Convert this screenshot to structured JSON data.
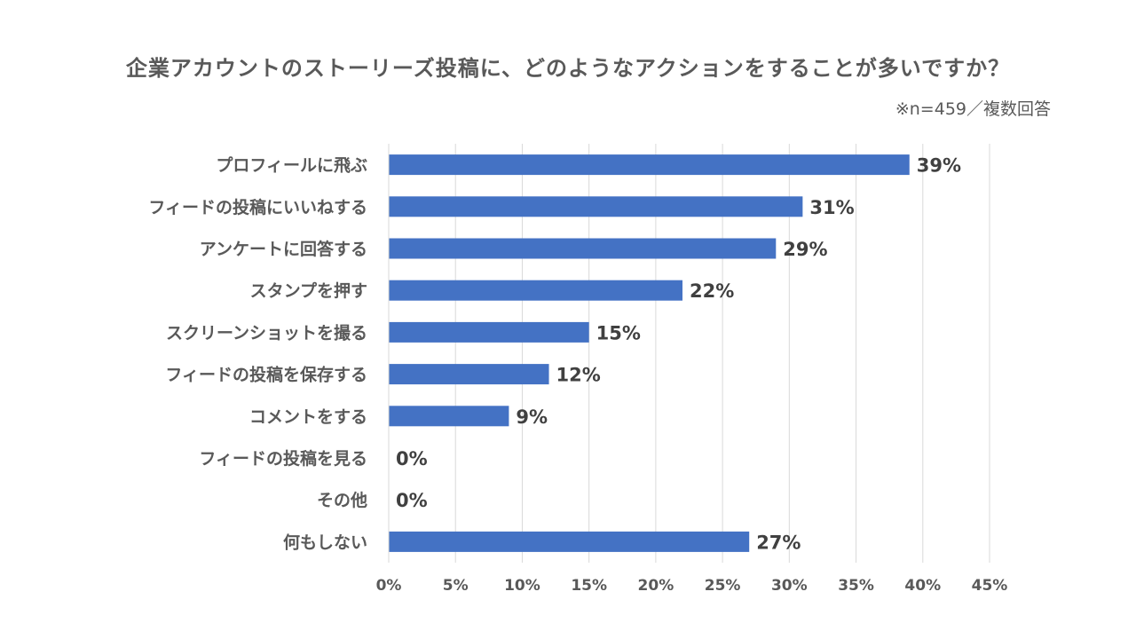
{
  "chart_data": {
    "type": "bar",
    "orientation": "horizontal",
    "title": "企業アカウントのストーリーズ投稿に、どのようなアクションをすることが多いですか？",
    "note": "※n=459／複数回答",
    "categories": [
      "プロフィールに飛ぶ",
      "フィードの投稿にいいねする",
      "アンケートに回答する",
      "スタンプを押す",
      "スクリーンショットを撮る",
      "フィードの投稿を保存する",
      "コメントをする",
      "フィードの投稿を見る",
      "その他",
      "何もしない"
    ],
    "values": [
      39,
      31,
      29,
      22,
      15,
      12,
      9,
      0,
      0,
      27
    ],
    "data_labels": [
      "39%",
      "31%",
      "29%",
      "22%",
      "15%",
      "12%",
      "9%",
      "0%",
      "0%",
      "27%"
    ],
    "xlim": [
      0,
      45
    ],
    "x_ticks": [
      0,
      5,
      10,
      15,
      20,
      25,
      30,
      35,
      40,
      45
    ],
    "x_tick_labels": [
      "0%",
      "5%",
      "10%",
      "15%",
      "20%",
      "25%",
      "30%",
      "35%",
      "40%",
      "45%"
    ],
    "grid": true,
    "bar_color": "#4472C4",
    "grid_color": "#D9D9D9",
    "text_color": "#595959"
  }
}
